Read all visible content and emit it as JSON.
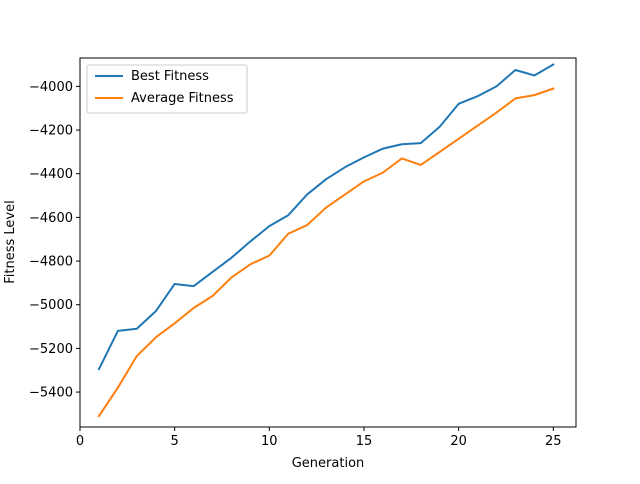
{
  "chart_data": {
    "type": "line",
    "title": "",
    "xlabel": "Generation",
    "ylabel": "Fitness Level",
    "xlim": [
      0,
      26.2
    ],
    "ylim": [
      -5560,
      -3870
    ],
    "x_ticks": [
      0,
      5,
      10,
      15,
      20,
      25
    ],
    "y_ticks": [
      -5400,
      -5200,
      -5000,
      -4800,
      -4600,
      -4400,
      -4200,
      -4000
    ],
    "legend_position": "top-left",
    "grid": false,
    "x": [
      1,
      2,
      3,
      4,
      5,
      6,
      7,
      8,
      9,
      10,
      11,
      12,
      13,
      14,
      15,
      16,
      17,
      18,
      19,
      20,
      21,
      22,
      23,
      24,
      25
    ],
    "series": [
      {
        "name": "Best Fitness",
        "color": "#1f77b4",
        "values": [
          -5295,
          -5120,
          -5110,
          -5030,
          -4905,
          -4915,
          -4850,
          -4785,
          -4710,
          -4640,
          -4590,
          -4495,
          -4425,
          -4370,
          -4325,
          -4285,
          -4265,
          -4260,
          -4185,
          -4080,
          -4045,
          -4000,
          -3925,
          -3950,
          -3900
        ]
      },
      {
        "name": "Average Fitness",
        "color": "#ff7f0e",
        "values": [
          -5510,
          -5380,
          -5235,
          -5150,
          -5085,
          -5015,
          -4960,
          -4875,
          -4815,
          -4775,
          -4675,
          -4635,
          -4555,
          -4495,
          -4435,
          -4395,
          -4330,
          -4360,
          -4300,
          -4240,
          -4180,
          -4120,
          -4055,
          -4040,
          -4010
        ]
      }
    ]
  }
}
